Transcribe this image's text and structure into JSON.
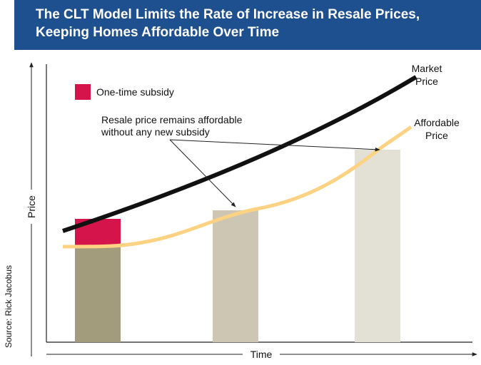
{
  "header": {
    "title_lines": [
      "The CLT Model Limits the Rate of Increase in Resale Prices,",
      "Keeping Homes Affordable Over Time"
    ]
  },
  "legend": {
    "label": "One-time subsidy"
  },
  "annotation": {
    "lines": [
      "Resale price remains affordable",
      "without any new subsidy"
    ]
  },
  "curves": {
    "market": [
      "Market",
      "Price"
    ],
    "affordable": [
      "Affordable",
      "Price"
    ]
  },
  "axes": {
    "y": "Price",
    "x": "Time"
  },
  "source": "Source: Rick Jacobus"
}
